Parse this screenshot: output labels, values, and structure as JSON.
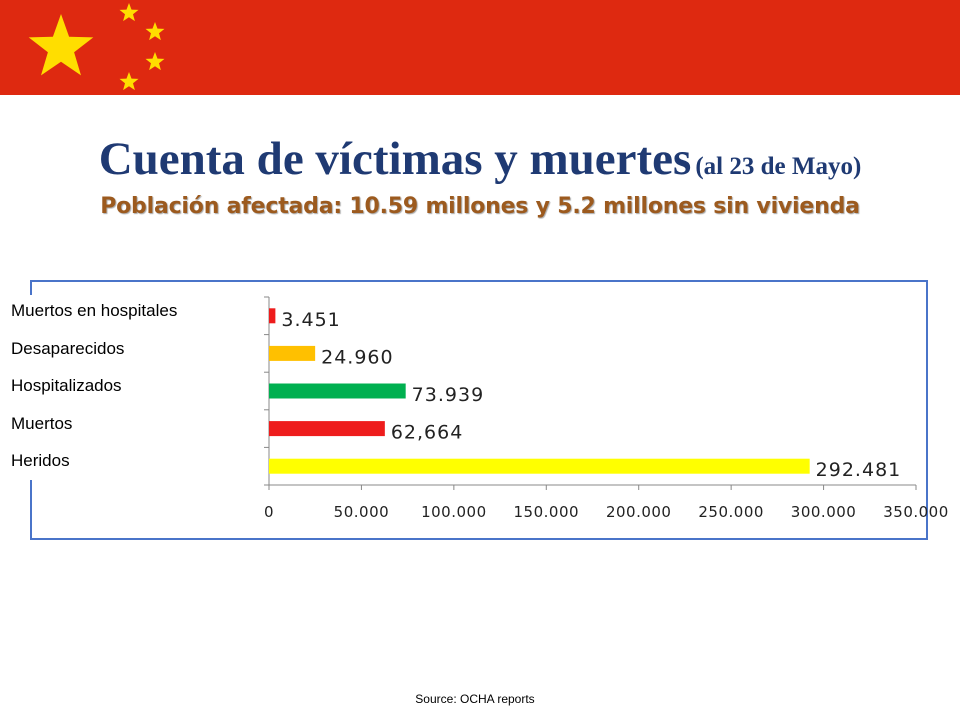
{
  "header": {
    "title_main": "Cuenta de víctimas y muertes",
    "title_note": "(al 23 de Mayo)",
    "subtitle": "Población afectada: 10.59 millones y 5.2 millones sin vivienda"
  },
  "colors": {
    "flag_red": "#de2910",
    "flag_star": "#ffde00",
    "title": "#1f3a73",
    "subtitle": "#9c5a1e",
    "frame": "#4a74c9"
  },
  "chart_data": {
    "type": "bar",
    "orientation": "horizontal",
    "categories": [
      "Muertos en hospitales",
      "Desaparecidos",
      "Hospitalizados",
      "Muertos",
      "Heridos"
    ],
    "values": [
      3451,
      24960,
      73939,
      62664,
      292481
    ],
    "data_labels": [
      "3.451",
      "24.960",
      "73.939",
      "62,664",
      "292.481"
    ],
    "bar_colors": [
      "#ee1c1c",
      "#ffc000",
      "#00b050",
      "#ee1c1c",
      "#ffff00"
    ],
    "xlim": [
      0,
      350000
    ],
    "x_ticks": [
      0,
      50000,
      100000,
      150000,
      200000,
      250000,
      300000,
      350000
    ],
    "x_tick_labels": [
      "0",
      "50.000",
      "100.000",
      "150.000",
      "200.000",
      "250.000",
      "300.000",
      "350.000"
    ],
    "grid": false,
    "legend": "none"
  },
  "footer": {
    "source": "Source: OCHA reports"
  }
}
